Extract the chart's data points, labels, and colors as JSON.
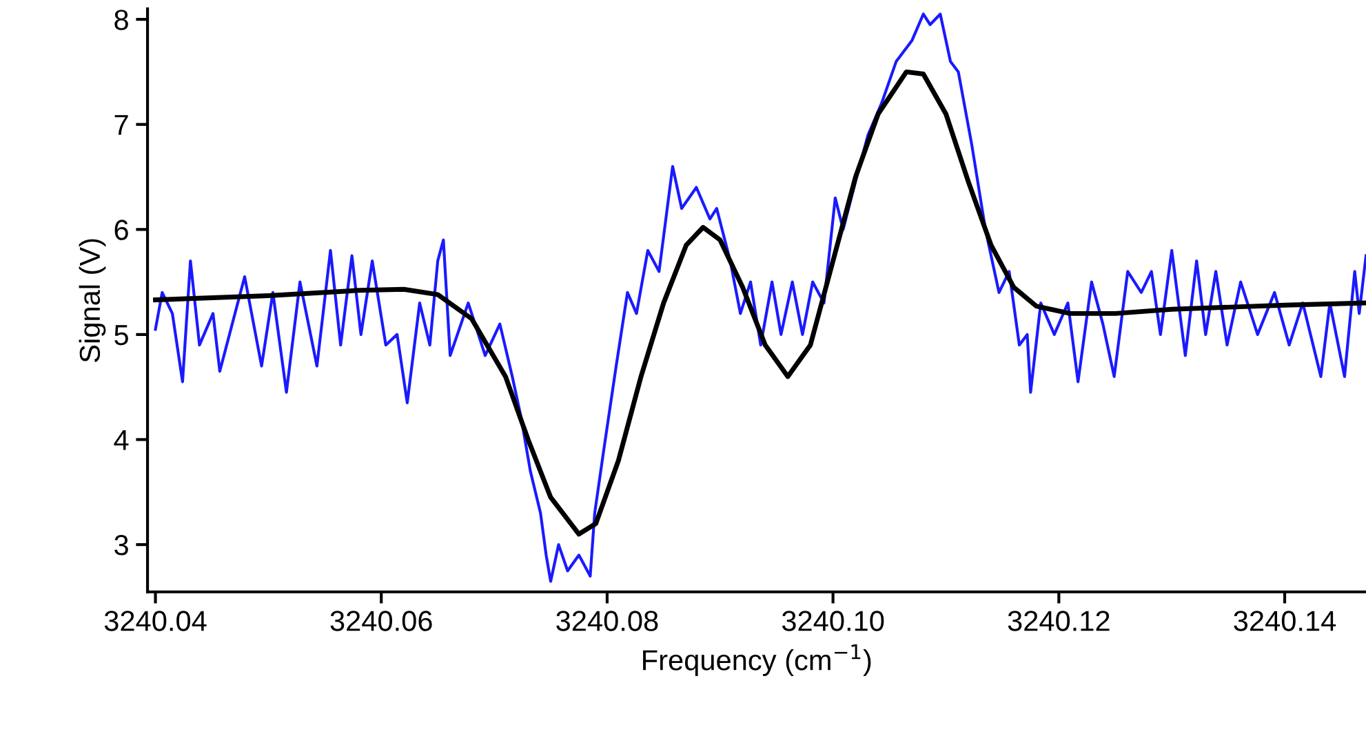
{
  "chart_data": {
    "type": "line",
    "xlabel": "Frequency (cm$^{−1}$)",
    "ylabel": "Signal (V)",
    "xlim": [
      3240.0393,
      3240.1472
    ],
    "ylim": [
      2.55,
      8.1
    ],
    "xticks": [
      {
        "value": 3240.04,
        "label": "3240.04"
      },
      {
        "value": 3240.06,
        "label": "3240.06"
      },
      {
        "value": 3240.08,
        "label": "3240.08"
      },
      {
        "value": 3240.1,
        "label": "3240.10"
      },
      {
        "value": 3240.12,
        "label": "3240.12"
      },
      {
        "value": 3240.14,
        "label": "3240.14"
      }
    ],
    "yticks": [
      3,
      4,
      5,
      6,
      7,
      8
    ],
    "grid": false,
    "series": [
      {
        "color": "#1a1aff",
        "x": [
          3240.04,
          3240.0406,
          3240.0415,
          3240.0424,
          3240.0431,
          3240.0439,
          3240.0451,
          3240.0457,
          3240.0479,
          3240.0494,
          3240.0504,
          3240.0516,
          3240.0528,
          3240.0543,
          3240.0555,
          3240.0564,
          3240.0574,
          3240.0582,
          3240.0592,
          3240.0604,
          3240.0614,
          3240.0623,
          3240.0634,
          3240.0643,
          3240.065,
          3240.0655,
          3240.0661,
          3240.0677,
          3240.0692,
          3240.0705,
          3240.0716,
          3240.0724,
          3240.0732,
          3240.0741,
          3240.0746,
          3240.075,
          3240.0757,
          3240.0765,
          3240.0775,
          3240.0785,
          3240.0789,
          3240.0797,
          3240.0808,
          3240.0818,
          3240.0826,
          3240.0836,
          3240.0846,
          3240.0858,
          3240.0866,
          3240.0879,
          3240.0891,
          3240.0897,
          3240.0909,
          3240.0918,
          3240.0927,
          3240.0936,
          3240.0946,
          3240.0954,
          3240.0964,
          3240.0973,
          3240.0982,
          3240.0992,
          3240.1002,
          3240.1009,
          3240.1021,
          3240.1031,
          3240.1043,
          3240.1056,
          3240.107,
          3240.108,
          3240.1086,
          3240.1095,
          3240.1104,
          3240.1111,
          3240.1123,
          3240.1135,
          3240.1147,
          3240.1156,
          3240.1165,
          3240.1172,
          3240.1175,
          3240.1184,
          3240.1196,
          3240.1208,
          3240.1217,
          3240.1229,
          3240.1239,
          3240.1249,
          3240.1261,
          3240.1273,
          3240.1282,
          3240.129,
          3240.13,
          3240.1312,
          3240.1322,
          3240.133,
          3240.1339,
          3240.1349,
          3240.1361,
          3240.1376,
          3240.1391,
          3240.1404,
          3240.1416,
          3240.1432,
          3240.144,
          3240.1453,
          3240.1462,
          3240.1466,
          3240.1472
        ],
        "values": [
          5.05,
          5.4,
          5.2,
          4.55,
          5.7,
          4.9,
          5.2,
          4.65,
          5.55,
          4.7,
          5.4,
          4.45,
          5.5,
          4.7,
          5.8,
          4.9,
          5.75,
          5.0,
          5.7,
          4.9,
          5.0,
          4.35,
          5.3,
          4.9,
          5.7,
          5.9,
          4.8,
          5.3,
          4.8,
          5.1,
          4.6,
          4.2,
          3.7,
          3.3,
          2.9,
          2.65,
          3.0,
          2.75,
          2.9,
          2.7,
          3.3,
          3.9,
          4.7,
          5.4,
          5.2,
          5.8,
          5.6,
          6.6,
          6.2,
          6.4,
          6.1,
          6.2,
          5.7,
          5.2,
          5.5,
          4.9,
          5.5,
          5.0,
          5.5,
          5.0,
          5.5,
          5.3,
          6.3,
          6.0,
          6.5,
          6.9,
          7.2,
          7.6,
          7.8,
          8.05,
          7.95,
          8.05,
          7.6,
          7.5,
          6.8,
          6.0,
          5.4,
          5.6,
          4.9,
          5.0,
          4.45,
          5.3,
          5.0,
          5.3,
          4.55,
          5.5,
          5.1,
          4.6,
          5.6,
          5.4,
          5.6,
          5.0,
          5.8,
          4.8,
          5.7,
          5.0,
          5.6,
          4.9,
          5.5,
          5.0,
          5.4,
          4.9,
          5.3,
          4.6,
          5.3,
          4.6,
          5.6,
          5.2,
          5.75
        ]
      },
      {
        "color": "#000000",
        "x": [
          3240.04,
          3240.05,
          3240.058,
          3240.062,
          3240.065,
          3240.068,
          3240.071,
          3240.073,
          3240.075,
          3240.0775,
          3240.079,
          3240.081,
          3240.083,
          3240.085,
          3240.087,
          3240.0885,
          3240.09,
          3240.092,
          3240.094,
          3240.096,
          3240.098,
          3240.1,
          3240.102,
          3240.104,
          3240.1065,
          3240.108,
          3240.11,
          3240.112,
          3240.114,
          3240.116,
          3240.118,
          3240.121,
          3240.125,
          3240.13,
          3240.14,
          3240.147
        ],
        "values": [
          5.33,
          5.37,
          5.42,
          5.43,
          5.38,
          5.15,
          4.6,
          4.0,
          3.45,
          3.1,
          3.2,
          3.8,
          4.6,
          5.3,
          5.85,
          6.02,
          5.9,
          5.45,
          4.9,
          4.6,
          4.9,
          5.7,
          6.5,
          7.1,
          7.5,
          7.48,
          7.1,
          6.45,
          5.85,
          5.45,
          5.27,
          5.2,
          5.2,
          5.24,
          5.28,
          5.3
        ]
      }
    ]
  }
}
